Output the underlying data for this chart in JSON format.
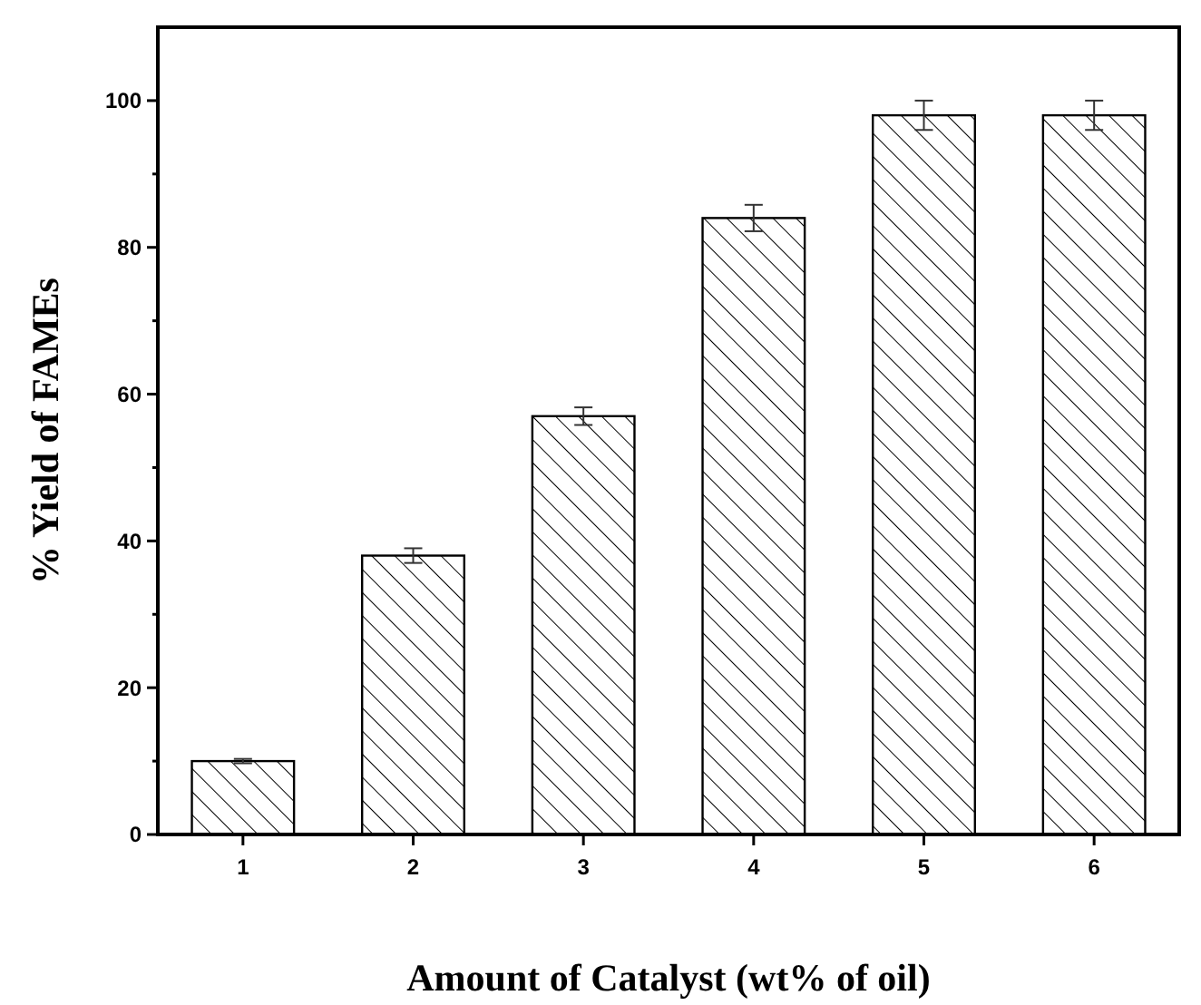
{
  "chart_data": {
    "type": "bar",
    "xlabel": "Amount of Catalyst (wt% of oil)",
    "ylabel": "% Yield of FAMEs",
    "categories": [
      "1",
      "2",
      "3",
      "4",
      "5",
      "6"
    ],
    "values": [
      10,
      38,
      57,
      84,
      98,
      98
    ],
    "errors": [
      0.3,
      1,
      1.2,
      1.8,
      2,
      2
    ],
    "color": "#000000",
    "ylim": [
      0,
      110
    ],
    "yticks": [
      0,
      {
        "value": 10,
        "label": null
      },
      20,
      {
        "value": 30,
        "label": null
      },
      40,
      {
        "value": 50,
        "label": null
      },
      60,
      {
        "value": 70,
        "label": null
      },
      80,
      {
        "value": 90,
        "label": null
      },
      100
    ],
    "grid": false
  }
}
